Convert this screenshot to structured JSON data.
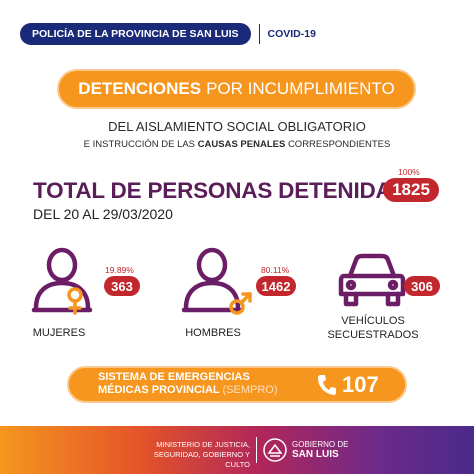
{
  "header": {
    "org": "POLICÍA DE LA PROVINCIA DE SAN LUIS",
    "topic": "COVID-19"
  },
  "title": {
    "bold": "DETENCIONES",
    "rest": "POR INCUMPLIMIENTO"
  },
  "subtitle": {
    "line1": "DEL AISLAMIENTO SOCIAL OBLIGATORIO",
    "line2_pre": "E INSTRUCCIÓN DE LAS",
    "line2_bold": "CAUSAS PENALES",
    "line2_post": "CORRESPONDIENTES"
  },
  "total": {
    "label": "TOTAL DE PERSONAS DETENIDAS:",
    "percent": "100%",
    "value": "1825",
    "date_range": "DEL 20 AL 29/03/2020"
  },
  "stats": {
    "women": {
      "percent": "19.89%",
      "value": "363",
      "label": "MUJERES"
    },
    "men": {
      "percent": "80.11%",
      "value": "1462",
      "label": "HOMBRES"
    },
    "vehicles": {
      "value": "306",
      "label_line1": "VEHÍCULOS",
      "label_line2": "SECUESTRADOS"
    }
  },
  "sempro": {
    "line1": "SISTEMA DE EMERGENCIAS",
    "line2": "MÉDICAS PROVINCIAL",
    "tag": "(SEMPRO)",
    "phone": "107"
  },
  "footer": {
    "ministry_line1": "MINISTERIO DE JUSTICIA,",
    "ministry_line2": "SEGURIDAD, GOBIERNO Y CULTO",
    "gov_line1": "GOBIERNO DE",
    "gov_line2": "SAN LUIS"
  },
  "colors": {
    "navy": "#1a2a78",
    "orange": "#f6961e",
    "red": "#c1272d",
    "purple": "#5a1d58",
    "icon_purple": "#6b1e66"
  },
  "icons": {
    "women": "person-female-icon",
    "men": "person-male-icon",
    "vehicles": "car-icon",
    "phone": "phone-icon"
  }
}
